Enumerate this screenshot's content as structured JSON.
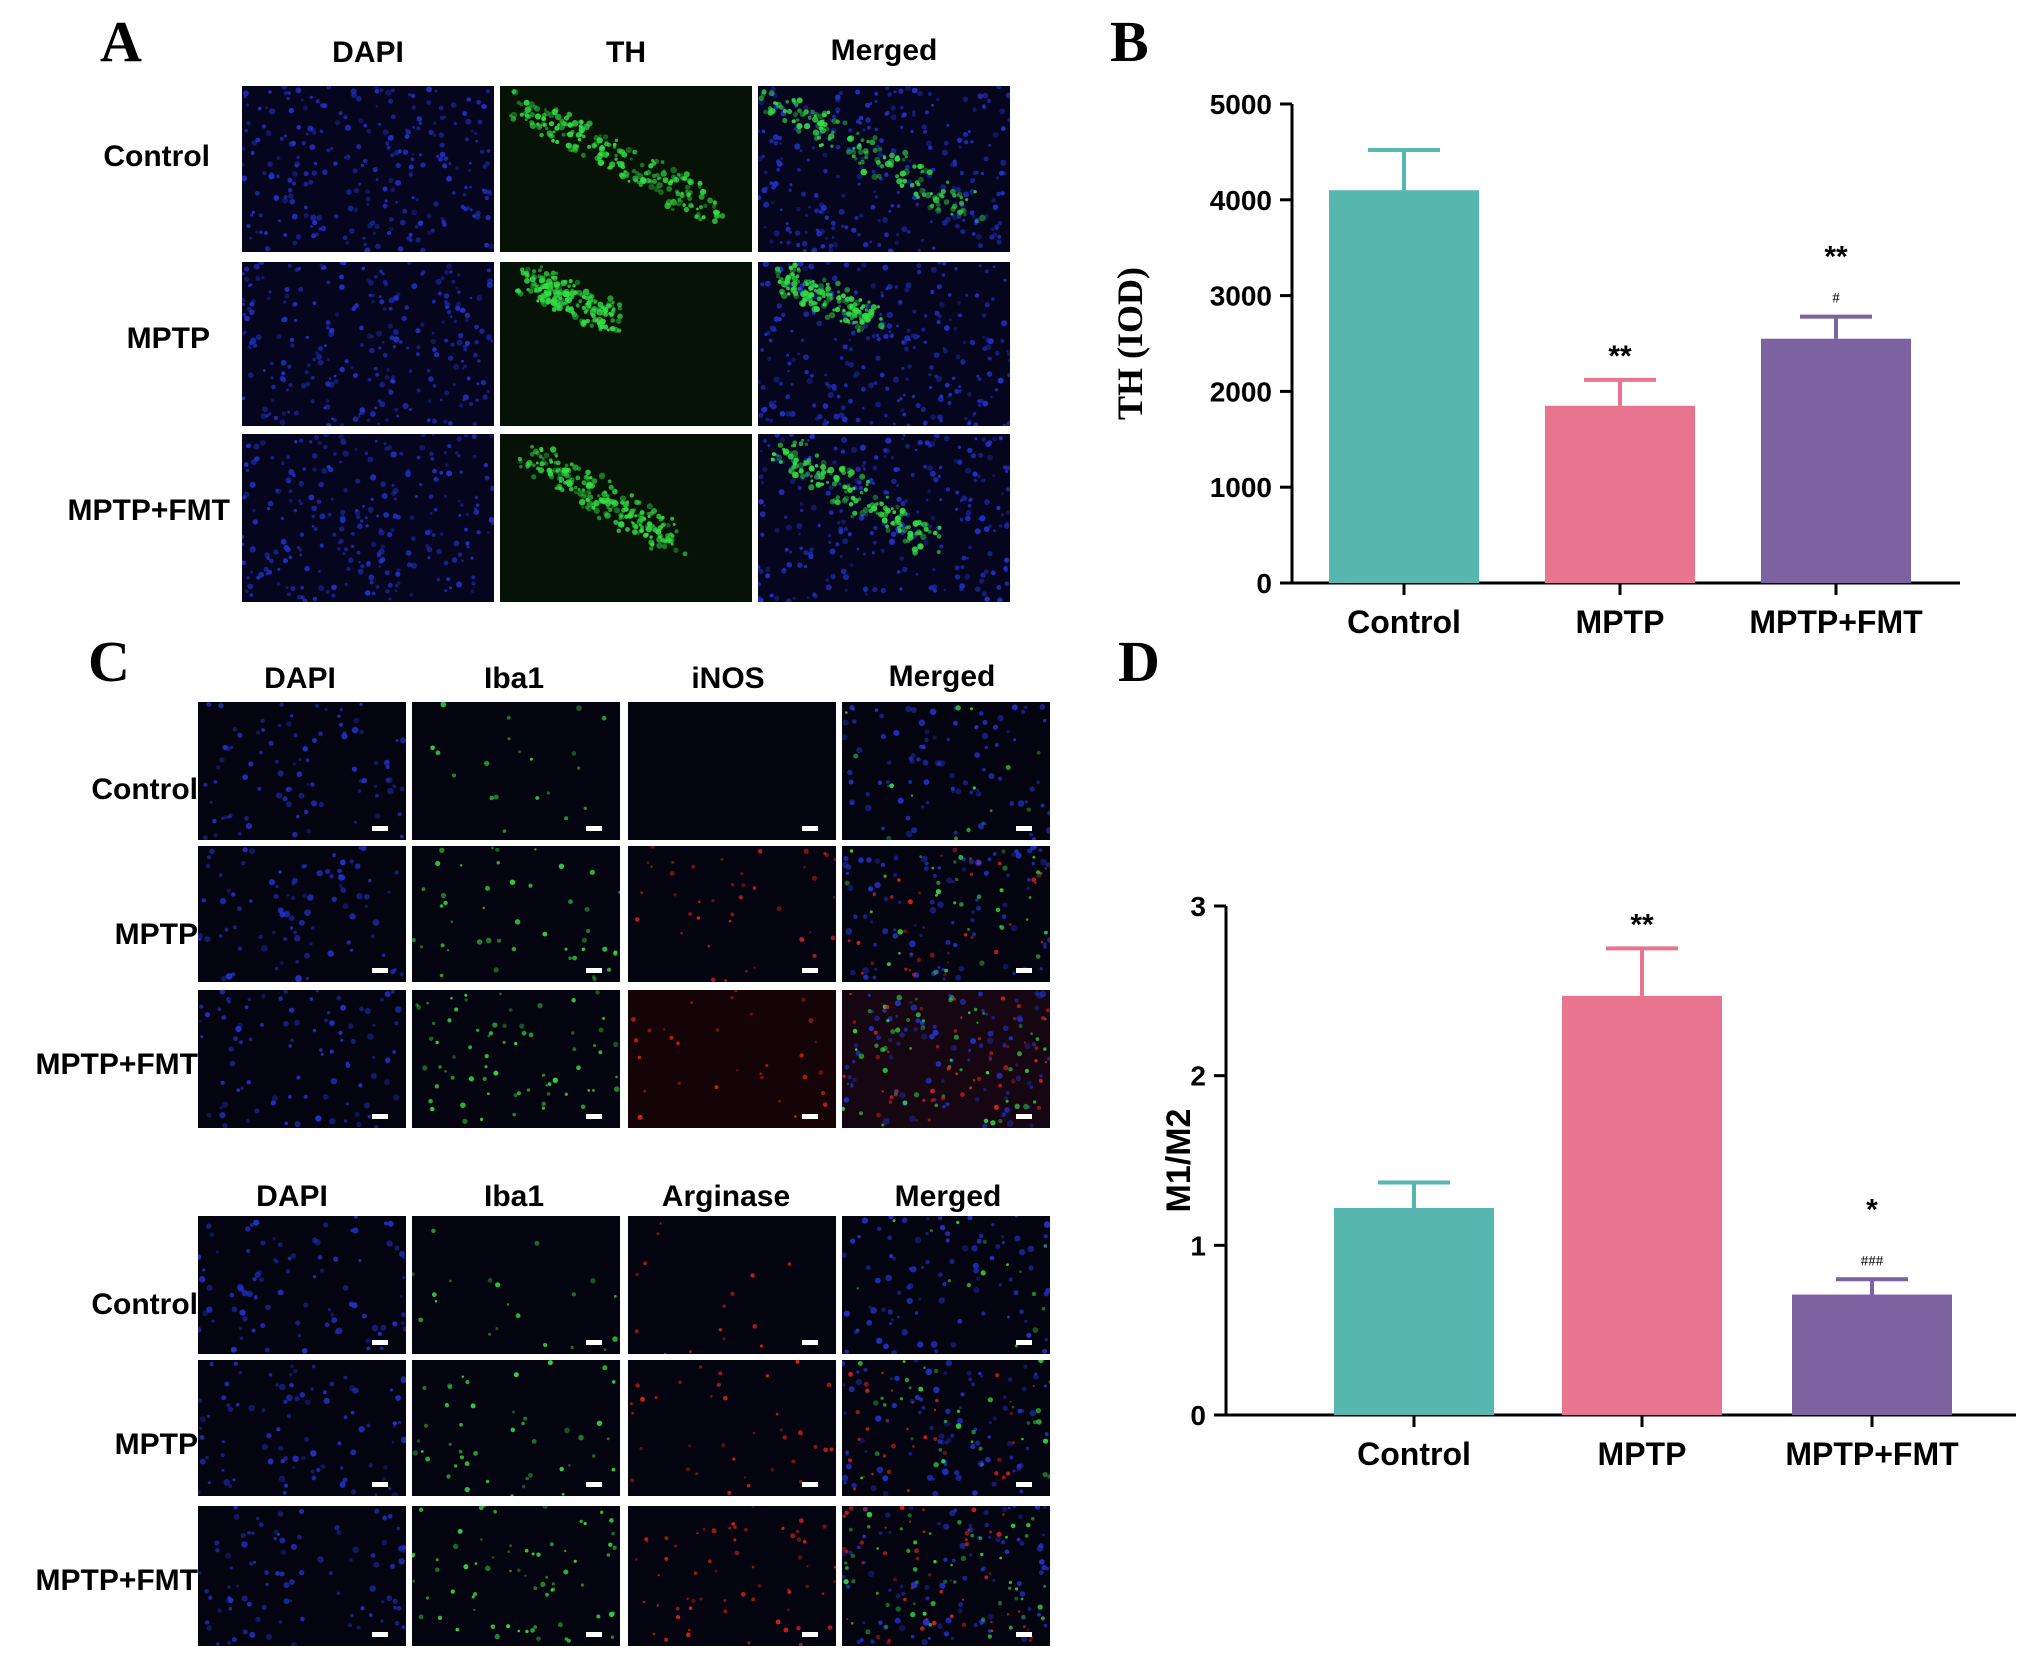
{
  "panels": {
    "A": {
      "letter": "A",
      "columns": [
        "DAPI",
        "TH",
        "Merged"
      ],
      "rows": [
        "Control",
        "MPTP",
        "MPTP+FMT"
      ]
    },
    "C": {
      "letter": "C",
      "sets": [
        {
          "columns": [
            "DAPI",
            "Iba1",
            "iNOS",
            "Merged"
          ],
          "rows": [
            "Control",
            "MPTP",
            "MPTP+FMT"
          ]
        },
        {
          "columns": [
            "DAPI",
            "Iba1",
            "Arginase",
            "Merged"
          ],
          "rows": [
            "Control",
            "MPTP",
            "MPTP+FMT"
          ]
        }
      ]
    },
    "B": {
      "letter": "B"
    },
    "D": {
      "letter": "D"
    }
  },
  "colors": {
    "control": "#56b7b1",
    "mptp": "#e9748f",
    "mptp_fmt": "#7c62a0",
    "dapi": "#2233cc",
    "green": "#33dd44",
    "red": "#dd2222"
  },
  "chart_data": [
    {
      "type": "bar",
      "panel": "B",
      "categories": [
        "Control",
        "MPTP",
        "MPTP+FMT"
      ],
      "values": [
        4100,
        1850,
        2550
      ],
      "errors": [
        420,
        270,
        230
      ],
      "annotations": [
        [
          "",
          ""
        ],
        [
          "**",
          ""
        ],
        [
          "**",
          "#"
        ]
      ],
      "ylabel": "TH (IOD)",
      "ylim": [
        0,
        5000
      ],
      "yticks": [
        0,
        1000,
        2000,
        3000,
        4000,
        5000
      ]
    },
    {
      "type": "bar",
      "panel": "D",
      "categories": [
        "Control",
        "MPTP",
        "MPTP+FMT"
      ],
      "values": [
        1.22,
        2.47,
        0.71
      ],
      "errors": [
        0.15,
        0.28,
        0.09
      ],
      "annotations": [
        [
          "",
          ""
        ],
        [
          "**",
          ""
        ],
        [
          "*",
          "###"
        ]
      ],
      "ylabel": "M1/M2",
      "ylim": [
        0,
        3
      ],
      "yticks": [
        0,
        1,
        2,
        3
      ]
    }
  ]
}
